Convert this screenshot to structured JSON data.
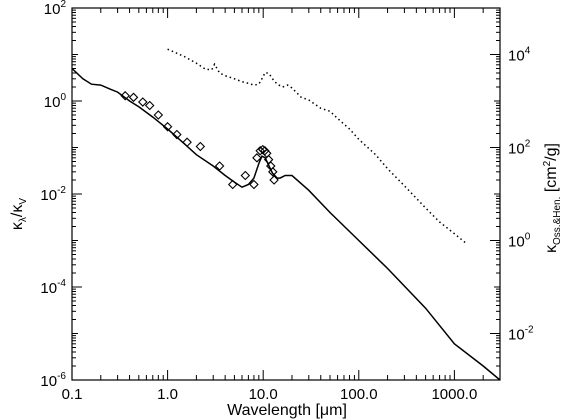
{
  "chart_data": {
    "type": "line",
    "x_scale": "log",
    "y_scale": "log",
    "y2_scale": "log",
    "xlim": [
      0.1,
      3000
    ],
    "ylim": [
      1e-06,
      100
    ],
    "y2lim": [
      0.001,
      100000
    ],
    "xlabel": {
      "main": "Wavelength ",
      "bracket_open": "[",
      "unit_greek": "μ",
      "unit_rest": "m",
      "bracket_close": "]"
    },
    "ylabel": {
      "k1": "κ",
      "sub1": "λ",
      "slash": "/",
      "k2": "κ",
      "sub2": "V"
    },
    "y2label": {
      "k": "κ",
      "sub": "Oss.&Hen.",
      "unit_open": " [cm",
      "unit_sup": "2",
      "unit_close": "/g]"
    },
    "x_ticks": [
      {
        "value": 0.1,
        "label": "0.1"
      },
      {
        "value": 1,
        "label": "1.0"
      },
      {
        "value": 10,
        "label": "10.0"
      },
      {
        "value": 100,
        "label": "100.0"
      },
      {
        "value": 1000,
        "label": "1000.0"
      }
    ],
    "y_ticks": [
      {
        "value": 1e-06,
        "base": "10",
        "exp": "-6"
      },
      {
        "value": 0.0001,
        "base": "10",
        "exp": "-4"
      },
      {
        "value": 0.01,
        "base": "10",
        "exp": "-2"
      },
      {
        "value": 1,
        "base": "10",
        "exp": "0"
      },
      {
        "value": 100,
        "base": "10",
        "exp": "2"
      }
    ],
    "y2_ticks": [
      {
        "value": 0.01,
        "base": "10",
        "exp": "-2"
      },
      {
        "value": 1,
        "base": "10",
        "exp": "0"
      },
      {
        "value": 100,
        "base": "10",
        "exp": "2"
      },
      {
        "value": 10000,
        "base": "10",
        "exp": "4"
      }
    ],
    "series": [
      {
        "style": "solid",
        "axis": "left",
        "x": [
          0.1,
          0.13,
          0.16,
          0.2,
          0.25,
          0.3,
          0.4,
          0.5,
          0.7,
          1.0,
          1.5,
          2.0,
          3.0,
          4.0,
          5.0,
          6.0,
          7.0,
          8.0,
          9.0,
          9.7,
          10.5,
          11.5,
          12.5,
          14.0,
          15.0,
          17.0,
          20.0,
          30.0,
          50.0,
          100.0,
          200.0,
          500.0,
          1000.0,
          2000.0,
          3000.0
        ],
        "y": [
          5.0,
          3.0,
          2.3,
          2.2,
          1.8,
          1.55,
          1.0,
          0.75,
          0.45,
          0.25,
          0.12,
          0.07,
          0.04,
          0.025,
          0.018,
          0.014,
          0.016,
          0.022,
          0.045,
          0.065,
          0.06,
          0.04,
          0.028,
          0.022,
          0.022,
          0.025,
          0.025,
          0.012,
          0.004,
          0.001,
          0.00025,
          3.5e-05,
          6e-06,
          2e-06,
          1e-06
        ]
      },
      {
        "style": "dotted",
        "axis": "right",
        "x": [
          1.0,
          1.5,
          2.0,
          2.5,
          2.9,
          3.1,
          3.5,
          4.0,
          5.0,
          6.0,
          7.0,
          8.0,
          9.0,
          9.7,
          10.5,
          11.5,
          12.5,
          14.0,
          16.0,
          18.0,
          20.0,
          25.0,
          30.0,
          40.0,
          50.0,
          60.0,
          80.0,
          100.0,
          150.0,
          200.0,
          300.0,
          500.0,
          700.0,
          1000.0,
          1300.0
        ],
        "y": [
          13000,
          9000,
          6500,
          4800,
          4700,
          6200,
          4000,
          3500,
          3000,
          2600,
          2400,
          2200,
          2300,
          3000,
          4100,
          3900,
          3000,
          2300,
          2000,
          2200,
          1900,
          1200,
          1050,
          700,
          600,
          420,
          250,
          150,
          70,
          35,
          15,
          5,
          2.5,
          1.4,
          0.9
        ]
      }
    ],
    "markers": {
      "shape": "diamond",
      "axis": "left",
      "x": [
        0.36,
        0.44,
        0.55,
        0.65,
        0.8,
        1.0,
        1.25,
        1.6,
        2.2,
        3.5,
        4.8,
        6.5,
        8.0,
        8.6,
        9.3,
        9.9,
        10.4,
        10.9,
        11.4,
        12.0,
        12.6,
        13.0
      ],
      "y": [
        1.3,
        1.2,
        0.95,
        0.8,
        0.5,
        0.28,
        0.19,
        0.13,
        0.105,
        0.04,
        0.016,
        0.025,
        0.016,
        0.06,
        0.085,
        0.09,
        0.085,
        0.075,
        0.055,
        0.04,
        0.03,
        0.02
      ]
    }
  }
}
